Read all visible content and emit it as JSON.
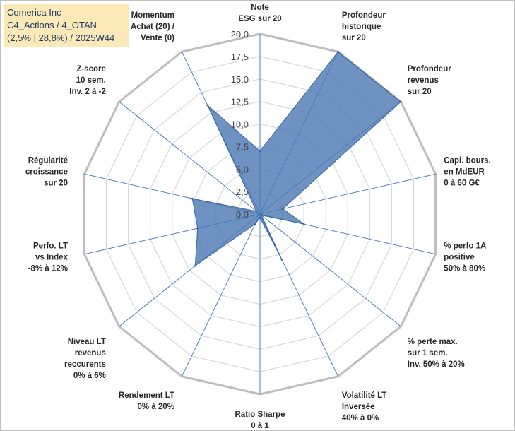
{
  "info": {
    "line1": "Comerica Inc",
    "line2": "C4_Actions / 4_OTAN",
    "line3": "(2,5% | 28,8%) / 2025W44"
  },
  "chart_data": {
    "type": "radar",
    "title": "",
    "r_range": [
      0,
      20
    ],
    "r_ticks": [
      0,
      2.5,
      5,
      7.5,
      10,
      12.5,
      15,
      17.5,
      20
    ],
    "r_tick_labels": [
      "0,0",
      "2,5",
      "5,0",
      "7,5",
      "10,0",
      "12,5",
      "15,0",
      "17,5",
      "20,0"
    ],
    "axes": [
      [
        "Note",
        "ESG sur 20"
      ],
      [
        "Profondeur",
        "historique",
        "sur 20"
      ],
      [
        "Profondeur",
        "revenus",
        "sur 20"
      ],
      [
        "Capi. bours.",
        "en MdEUR",
        "0 à 60 G€"
      ],
      [
        "% perfo 1A",
        "positive",
        "50% à 80%"
      ],
      [
        "% perte max.",
        "sur 1 sem.",
        "Inv. 50% à 20%"
      ],
      [
        "Volatilité LT",
        "Inversée",
        "40% à 0%"
      ],
      [
        "Ratio Sharpe",
        "0 à 1"
      ],
      [
        "Rendement LT",
        "0% à 20%"
      ],
      [
        "Niveau LT",
        "revenus",
        "reccurents",
        "0% à 6%"
      ],
      [
        "Perfo. LT",
        "vs Index",
        "-8% à 12%"
      ],
      [
        "Régularité",
        "croissance",
        "sur 20"
      ],
      [
        "Z-score",
        "10 sem.",
        "Inv. 2 à -2"
      ],
      [
        "Momentum",
        "Achat (20) /",
        "Vente (0)"
      ]
    ],
    "series": [
      {
        "name": "Comerica Inc",
        "color": "#4a78b3",
        "values": [
          7.0,
          20.0,
          20.0,
          2.6,
          5.0,
          0.2,
          5.6,
          0.4,
          1.2,
          9.2,
          7.1,
          7.7,
          0.5,
          13.4
        ]
      }
    ]
  }
}
